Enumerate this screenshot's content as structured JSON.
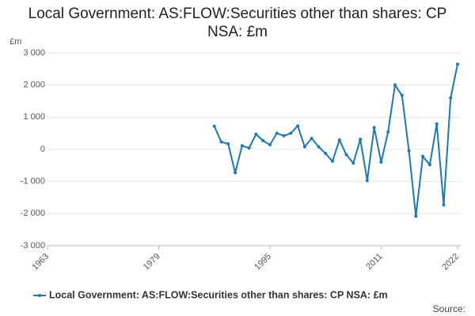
{
  "chart_data": {
    "type": "line",
    "title": "Local Government: AS:FLOW:Securities other than shares: CP NSA: £m",
    "y_unit": "£m",
    "source": "Source:",
    "x": [
      1987,
      1988,
      1989,
      1990,
      1991,
      1992,
      1993,
      1994,
      1995,
      1996,
      1997,
      1998,
      1999,
      2000,
      2001,
      2002,
      2003,
      2004,
      2005,
      2006,
      2007,
      2008,
      2009,
      2010,
      2011,
      2012,
      2013,
      2014,
      2015,
      2016,
      2017,
      2018,
      2019,
      2020,
      2021,
      2022
    ],
    "series": [
      {
        "name": "Local Government: AS:FLOW:Securities other than shares: CP NSA: £m",
        "color": "#1a7ab8",
        "values": [
          720,
          230,
          170,
          -730,
          110,
          40,
          470,
          270,
          140,
          500,
          420,
          500,
          730,
          80,
          340,
          80,
          -130,
          -370,
          290,
          -170,
          -430,
          310,
          -970,
          680,
          -400,
          540,
          2000,
          1680,
          -50,
          -2080,
          -220,
          -480,
          790,
          -1730,
          1600,
          2650
        ]
      }
    ],
    "xlim": [
      1963,
      2022
    ],
    "xticks": [
      1963,
      1979,
      1995,
      2011,
      2022
    ],
    "ylim": [
      -3000,
      3000
    ],
    "yticks": [
      {
        "value": -3000,
        "label": "-3 000"
      },
      {
        "value": -2000,
        "label": "-2 000"
      },
      {
        "value": -1000,
        "label": "-1 000"
      },
      0,
      {
        "value": 1000,
        "label": "1 000"
      },
      {
        "value": 2000,
        "label": "2 000"
      },
      {
        "value": 3000,
        "label": "3 000"
      }
    ],
    "grid": true,
    "legend": "bottom"
  }
}
